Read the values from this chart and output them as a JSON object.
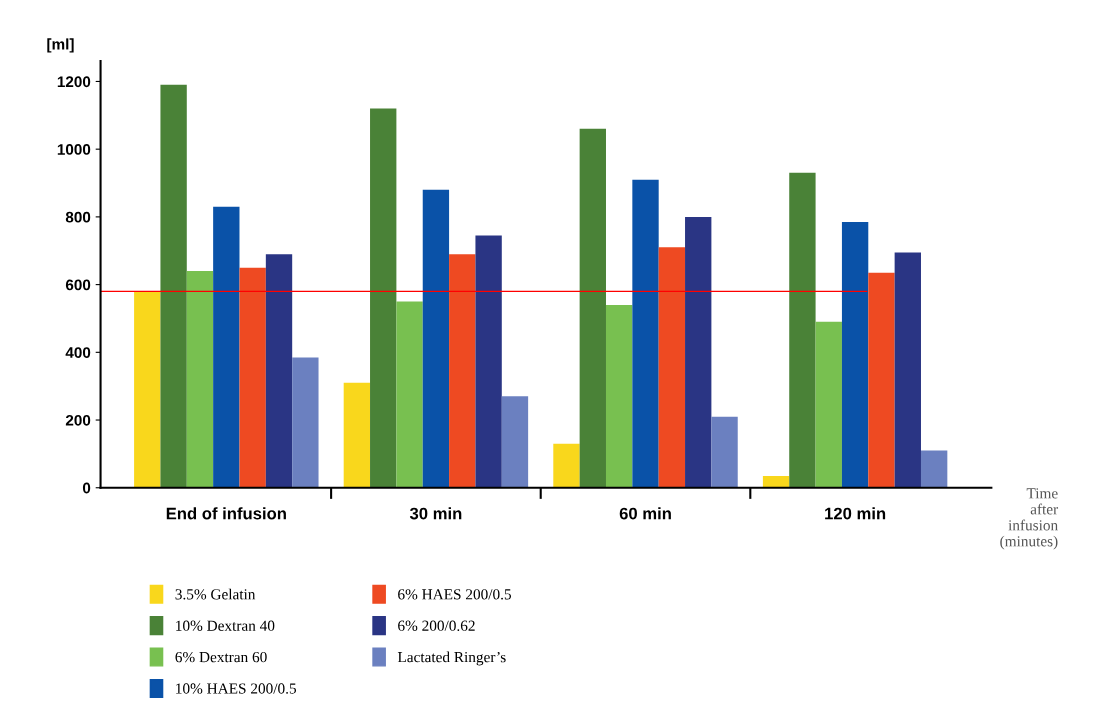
{
  "chart_data": {
    "type": "bar",
    "ylabel": "[ml]",
    "xlabel": "Time\nafter\ninfusion\n(minutes)",
    "categories": [
      "End of infusion",
      "30 min",
      "60 min",
      "120 min"
    ],
    "series": [
      {
        "name": "3.5% Gelatin",
        "color": "#f9d71c",
        "values": [
          580,
          310,
          130,
          35
        ]
      },
      {
        "name": "10% Dextran 40",
        "color": "#4a8237",
        "values": [
          1190,
          1120,
          1060,
          930
        ]
      },
      {
        "name": "6% Dextran 60",
        "color": "#78c050",
        "values": [
          640,
          550,
          540,
          490
        ]
      },
      {
        "name": "10% HAES 200/0.5",
        "color": "#0a52a8",
        "values": [
          830,
          880,
          910,
          785
        ]
      },
      {
        "name": "6% HAES 200/0.5",
        "color": "#ee4a22",
        "values": [
          650,
          690,
          710,
          635
        ]
      },
      {
        "name": "6% 200/0.62",
        "color": "#2a3584",
        "values": [
          690,
          745,
          800,
          695
        ]
      },
      {
        "name": "Lactated Ringer’s",
        "color": "#6b80c0",
        "values": [
          385,
          270,
          210,
          110
        ]
      }
    ],
    "ylim": [
      0,
      1260
    ],
    "yticks": [
      0,
      200,
      400,
      600,
      800,
      1000,
      1200
    ],
    "ref_lines": [
      {
        "axis": "y",
        "value": 580,
        "color": "#ff0000"
      }
    ],
    "grid": false,
    "legend": "bottom"
  }
}
